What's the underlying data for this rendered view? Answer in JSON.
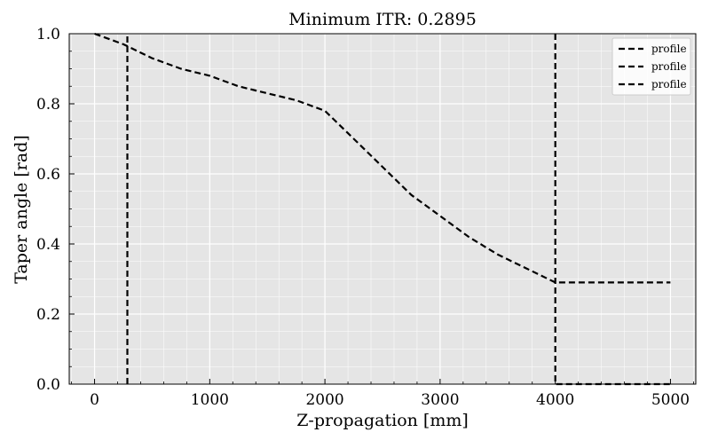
{
  "chart_data": {
    "type": "line",
    "title": "Minimum ITR: 0.2895",
    "xlabel": "Z-propagation [mm]",
    "ylabel": "Taper angle [rad]",
    "xlim": [
      -220,
      5220
    ],
    "ylim": [
      0.0,
      1.0
    ],
    "xticks": [
      0,
      1000,
      2000,
      3000,
      4000,
      5000
    ],
    "yticks": [
      0.0,
      0.2,
      0.4,
      0.6,
      0.8,
      1.0
    ],
    "xtick_labels": [
      "0",
      "1000",
      "2000",
      "3000",
      "4000",
      "5000"
    ],
    "ytick_labels": [
      "0.0",
      "0.2",
      "0.4",
      "0.6",
      "0.8",
      "1.0"
    ],
    "grid": true,
    "background_color": "#e5e5e5",
    "legend_position": "top-right",
    "series": [
      {
        "name": "profile",
        "style": "dashed",
        "color": "#000000",
        "x": [
          0,
          250,
          500,
          750,
          1000,
          1250,
          1500,
          1750,
          2000,
          2250,
          2500,
          2750,
          3000,
          3250,
          3500,
          3750,
          4000,
          4250,
          4500,
          4750,
          5000
        ],
        "y": [
          1.0,
          0.97,
          0.93,
          0.9,
          0.88,
          0.85,
          0.83,
          0.81,
          0.78,
          0.7,
          0.62,
          0.54,
          0.48,
          0.42,
          0.37,
          0.33,
          0.29,
          0.29,
          0.29,
          0.29,
          0.29
        ]
      },
      {
        "name": "profile",
        "style": "dashed",
        "color": "#000000",
        "x": [
          285,
          285
        ],
        "y": [
          0.0,
          1.0
        ]
      },
      {
        "name": "profile",
        "style": "dashed",
        "color": "#000000",
        "x": [
          4000,
          4000,
          5000
        ],
        "y": [
          1.0,
          0.0,
          0.0
        ]
      }
    ]
  }
}
